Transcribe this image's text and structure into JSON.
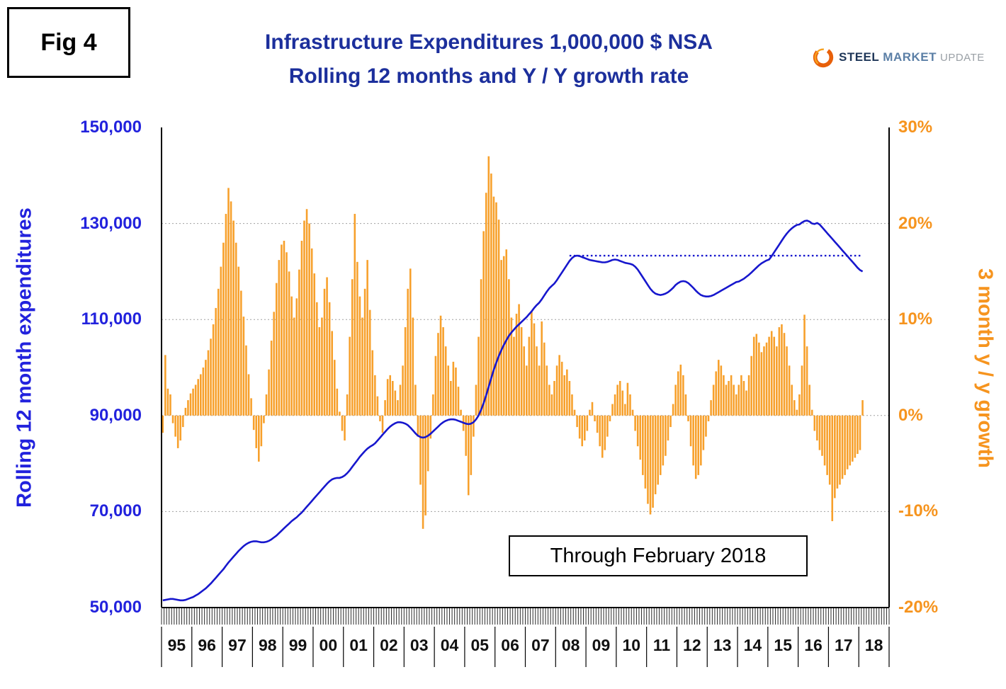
{
  "fig_label": "Fig 4",
  "title": {
    "line1": "Infrastructure Expenditures 1,000,000 $ NSA",
    "line2": "Rolling 12 months and Y / Y growth rate"
  },
  "logo": {
    "steel": "STEEL",
    "market": "MARKET",
    "update": "UPDATE"
  },
  "annotation": "Through February 2018",
  "colors": {
    "title": "#1c2f9c",
    "line": "#1717cd",
    "bar": "#f7a02b",
    "left_axis_text": "#2222dd",
    "right_axis_text": "#f6941e",
    "grid": "#a0a0a0",
    "axis_line": "#000000"
  },
  "chart_data": {
    "type": "bar",
    "title": "Infrastructure Expenditures 1,000,000 $ NSA Rolling 12 months and Y / Y growth rate",
    "x": {
      "start": "1995-01",
      "end": "2018-02",
      "frequency": "monthly"
    },
    "year_labels": [
      "95",
      "96",
      "97",
      "98",
      "99",
      "00",
      "01",
      "02",
      "03",
      "04",
      "05",
      "06",
      "07",
      "08",
      "09",
      "10",
      "11",
      "12",
      "13",
      "14",
      "15",
      "16",
      "17",
      "18"
    ],
    "left_axis": {
      "title": "Rolling 12 month expenditures",
      "min": 50000,
      "max": 150000,
      "ticks": [
        {
          "value": 150000,
          "label": "150,000"
        },
        {
          "value": 130000,
          "label": "130,000"
        },
        {
          "value": 110000,
          "label": "110,000"
        },
        {
          "value": 90000,
          "label": "90,000"
        },
        {
          "value": 70000,
          "label": "70,000"
        },
        {
          "value": 50000,
          "label": "50,000"
        }
      ]
    },
    "right_axis": {
      "title": "3 month y / y growth",
      "min": -20,
      "max": 30,
      "ticks": [
        {
          "value": 30,
          "label": "30%"
        },
        {
          "value": 20,
          "label": "20%"
        },
        {
          "value": 10,
          "label": "10%"
        },
        {
          "value": 0,
          "label": "0%"
        },
        {
          "value": -10,
          "label": "-10%"
        },
        {
          "value": -20,
          "label": "-20%"
        }
      ]
    },
    "grid": {
      "left_values": [
        130000,
        110000,
        90000,
        70000
      ]
    },
    "reference_line": {
      "axis": "left",
      "value": 123300,
      "start_index": 161,
      "style": "dotted"
    },
    "series": [
      {
        "name": "3 month y / y growth",
        "type": "bar",
        "axis": "right",
        "values": [
          -1.8,
          6.3,
          2.8,
          2.2,
          -0.8,
          -2.2,
          -3.4,
          -2.6,
          -1.2,
          0.8,
          1.6,
          2.3,
          2.8,
          3.2,
          3.8,
          4.3,
          5,
          5.8,
          6.8,
          8,
          9.5,
          11.2,
          13.2,
          15.5,
          18,
          21,
          23.7,
          22.3,
          20.3,
          18,
          15.5,
          13,
          10.3,
          7.3,
          4.3,
          1.8,
          -1.5,
          -3.4,
          -4.8,
          -3.2,
          -0.8,
          2.2,
          4.8,
          7.8,
          10.8,
          13.8,
          16.2,
          17.8,
          18.2,
          17,
          15,
          12.4,
          10.2,
          12.2,
          15.2,
          18.2,
          20.3,
          21.5,
          20,
          17.4,
          14.8,
          11.8,
          9.2,
          10.2,
          13.2,
          14.4,
          11.8,
          8.8,
          5.8,
          2.8,
          0.4,
          -1.6,
          -2.6,
          2.2,
          8.2,
          14.2,
          21,
          16,
          12.4,
          10.2,
          13.2,
          16.2,
          11,
          6.8,
          4.2,
          2,
          -0.6,
          -1.8,
          1.6,
          3.8,
          4.2,
          3.6,
          2.6,
          1.6,
          3.2,
          5.2,
          9.2,
          13.2,
          15.3,
          10.2,
          3.2,
          -2.2,
          -7.2,
          -11.8,
          -10.4,
          -5.8,
          -2.4,
          2.2,
          6.2,
          8.6,
          10.4,
          9.2,
          7.2,
          5.2,
          3.6,
          5.6,
          5,
          3,
          0.6,
          -1.6,
          -4.2,
          -8.3,
          -6.2,
          -2.2,
          3.2,
          8.2,
          14.2,
          19.2,
          23.2,
          27,
          25.2,
          22.8,
          22.2,
          20.4,
          16.2,
          16.6,
          17.3,
          14.2,
          10.2,
          8.2,
          10.6,
          11.6,
          9.2,
          7.2,
          5.2,
          8.2,
          10.8,
          9.6,
          7.2,
          5.2,
          9.8,
          7.6,
          5.2,
          3.2,
          2.2,
          3.6,
          5.2,
          6.3,
          5.6,
          4.2,
          4.8,
          3.6,
          2.2,
          0.6,
          -1.2,
          -2.4,
          -3.2,
          -2.6,
          -1.6,
          0.6,
          1.4,
          -0.6,
          -1.8,
          -3.2,
          -4.4,
          -3.6,
          -2.2,
          -0.6,
          1.2,
          2.2,
          3.2,
          3.6,
          2.6,
          1.2,
          3.4,
          2.2,
          0.6,
          -1.6,
          -3.2,
          -4.6,
          -6.2,
          -7.6,
          -9.2,
          -10.3,
          -9.6,
          -8.2,
          -7.2,
          -6.2,
          -5.2,
          -4.2,
          -2.6,
          -1.2,
          1.2,
          3.2,
          4.6,
          5.3,
          4.2,
          2.2,
          -0.6,
          -3.2,
          -5.2,
          -6.6,
          -6.2,
          -5.2,
          -3.6,
          -2.2,
          -0.6,
          1.6,
          3.2,
          4.6,
          5.8,
          5.2,
          4.2,
          3.2,
          3.6,
          4.2,
          3.2,
          2.2,
          3.2,
          4.2,
          3.6,
          2.6,
          4.2,
          6.2,
          8.2,
          8.5,
          7.6,
          6.6,
          7.2,
          7.6,
          8.2,
          8.8,
          8.2,
          7.2,
          9.2,
          9.5,
          8.6,
          7.2,
          5.2,
          3.2,
          1.6,
          0.6,
          2.2,
          5.2,
          10.5,
          7.2,
          3.2,
          0.6,
          -1.6,
          -2.6,
          -3.6,
          -4.2,
          -5.2,
          -6.2,
          -7.2,
          -11,
          -8.6,
          -7.6,
          -7.2,
          -6.6,
          -6.2,
          -5.6,
          -5.2,
          -4.8,
          -4.4,
          -4,
          -3.6,
          1.6
        ]
      },
      {
        "name": "Rolling 12 month expenditures",
        "type": "line",
        "axis": "left",
        "values": [
          51500,
          51600,
          51700,
          51800,
          51800,
          51700,
          51600,
          51500,
          51500,
          51600,
          51800,
          52000,
          52200,
          52500,
          52800,
          53200,
          53600,
          54000,
          54500,
          55000,
          55600,
          56200,
          56800,
          57400,
          58000,
          58700,
          59400,
          60000,
          60600,
          61200,
          61800,
          62300,
          62800,
          63200,
          63500,
          63700,
          63800,
          63800,
          63700,
          63600,
          63600,
          63700,
          63900,
          64200,
          64600,
          65000,
          65500,
          66000,
          66500,
          67000,
          67500,
          68000,
          68400,
          68800,
          69300,
          69800,
          70400,
          71000,
          71600,
          72200,
          72800,
          73400,
          74000,
          74600,
          75200,
          75800,
          76300,
          76700,
          76900,
          77000,
          77000,
          77200,
          77500,
          78000,
          78600,
          79300,
          80000,
          80700,
          81400,
          82000,
          82600,
          83100,
          83500,
          83800,
          84200,
          84800,
          85400,
          86000,
          86600,
          87200,
          87700,
          88100,
          88400,
          88600,
          88600,
          88500,
          88300,
          88000,
          87500,
          86900,
          86300,
          85800,
          85500,
          85400,
          85500,
          85800,
          86200,
          86700,
          87200,
          87700,
          88200,
          88600,
          88900,
          89100,
          89200,
          89200,
          89100,
          88900,
          88700,
          88500,
          88300,
          88200,
          88300,
          88600,
          89200,
          90000,
          91200,
          92600,
          94200,
          96000,
          97800,
          99500,
          101000,
          102400,
          103600,
          104700,
          105700,
          106600,
          107300,
          107900,
          108500,
          109000,
          109500,
          110000,
          110500,
          111100,
          111700,
          112400,
          113000,
          113500,
          114200,
          115000,
          115800,
          116500,
          117000,
          117500,
          118200,
          119000,
          119800,
          120600,
          121400,
          122200,
          122800,
          123200,
          123300,
          123200,
          123000,
          122800,
          122600,
          122400,
          122300,
          122200,
          122100,
          122000,
          121900,
          121900,
          122000,
          122200,
          122400,
          122500,
          122400,
          122200,
          122000,
          121800,
          121700,
          121600,
          121400,
          121000,
          120400,
          119600,
          118800,
          118000,
          117200,
          116400,
          115800,
          115400,
          115200,
          115100,
          115200,
          115400,
          115700,
          116100,
          116600,
          117200,
          117600,
          117900,
          118000,
          117900,
          117600,
          117100,
          116600,
          116000,
          115500,
          115100,
          114900,
          114800,
          114800,
          114900,
          115100,
          115400,
          115700,
          116000,
          116300,
          116600,
          116900,
          117200,
          117500,
          117800,
          117900,
          118200,
          118500,
          118900,
          119300,
          119800,
          120300,
          120800,
          121300,
          121700,
          122000,
          122300,
          122500,
          123200,
          124000,
          124800,
          125600,
          126400,
          127200,
          127900,
          128500,
          129000,
          129400,
          129700,
          129800,
          130200,
          130500,
          130600,
          130400,
          130000,
          129900,
          130100,
          129800,
          129200,
          128600,
          128000,
          127400,
          126800,
          126200,
          125600,
          125000,
          124400,
          123800,
          123200,
          122600,
          122000,
          121400,
          120800,
          120300,
          120000
        ]
      }
    ]
  }
}
